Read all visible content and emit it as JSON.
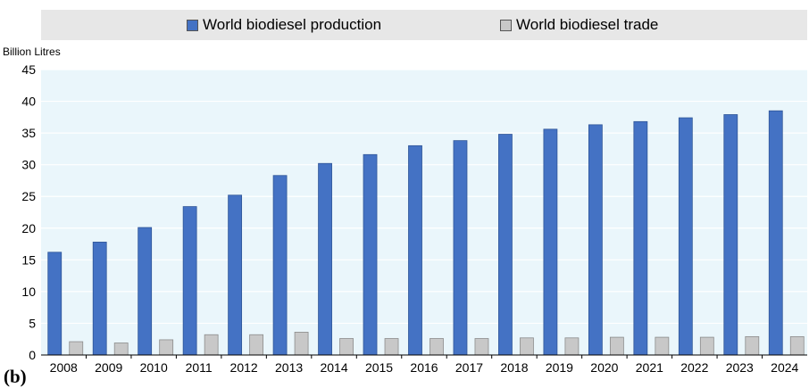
{
  "chart_data": {
    "type": "bar",
    "title": "",
    "xlabel": "",
    "ylabel": "Billion Litres",
    "ylim": [
      0,
      45
    ],
    "yticks": [
      0,
      5,
      10,
      15,
      20,
      25,
      30,
      35,
      40,
      45
    ],
    "grid": true,
    "legend_position": "top",
    "categories": [
      "2008",
      "2009",
      "2010",
      "2011",
      "2012",
      "2013",
      "2014",
      "2015",
      "2016",
      "2017",
      "2018",
      "2019",
      "2020",
      "2021",
      "2022",
      "2023",
      "2024"
    ],
    "series": [
      {
        "name": "World biodiesel production",
        "color": "#4472c4",
        "values": [
          16.2,
          17.8,
          20.1,
          23.4,
          25.2,
          28.3,
          30.2,
          31.6,
          33.0,
          33.8,
          34.8,
          35.6,
          36.3,
          36.8,
          37.4,
          37.9,
          38.5
        ]
      },
      {
        "name": "World biodiesel trade",
        "color": "#c8c8c8",
        "values": [
          2.1,
          1.9,
          2.4,
          3.2,
          3.2,
          3.6,
          2.6,
          2.6,
          2.6,
          2.6,
          2.7,
          2.7,
          2.8,
          2.8,
          2.8,
          2.9,
          2.9
        ]
      }
    ]
  },
  "panel_label": "(b)"
}
